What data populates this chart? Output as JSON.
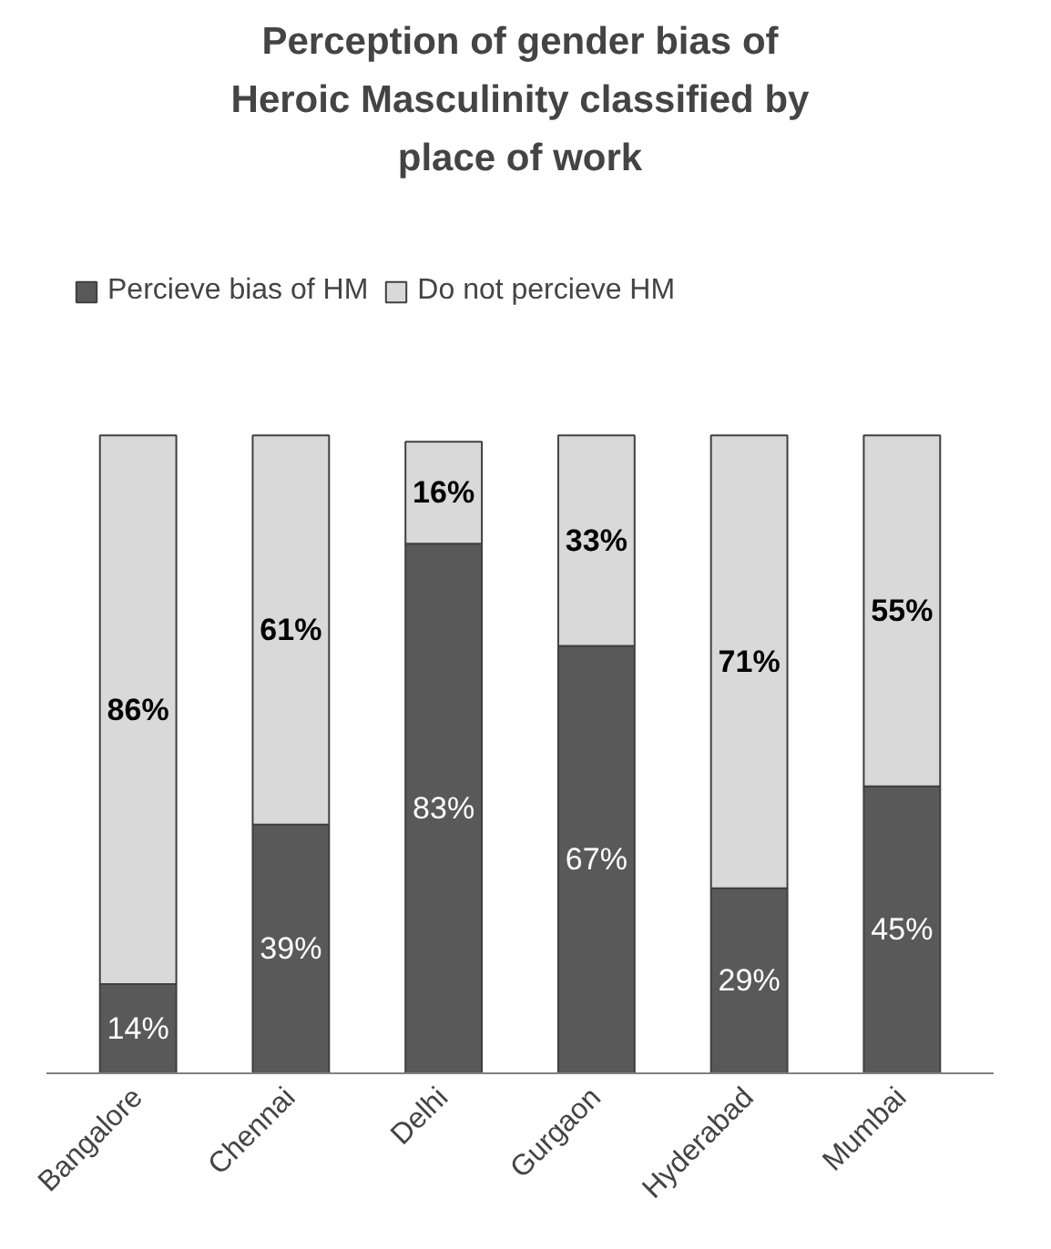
{
  "chart_data": {
    "type": "bar",
    "stacked": true,
    "title": "Perception of gender bias of Heroic Masculinity classified by place of work",
    "categories": [
      "Bangalore",
      "Chennai",
      "Delhi",
      "Gurgaon",
      "Hyderabad",
      "Mumbai"
    ],
    "series": [
      {
        "name": "Percieve bias of HM",
        "color": "#595959",
        "values": [
          14,
          39,
          83,
          67,
          29,
          45
        ],
        "value_labels": [
          "14%",
          "39%",
          "83%",
          "67%",
          "29%",
          "45%"
        ]
      },
      {
        "name": "Do not percieve HM",
        "color": "#d9d9d9",
        "values": [
          86,
          61,
          16,
          33,
          71,
          55
        ],
        "value_labels": [
          "86%",
          "61%",
          "16%",
          "33%",
          "71%",
          "55%"
        ]
      }
    ],
    "legend": "top"
  }
}
